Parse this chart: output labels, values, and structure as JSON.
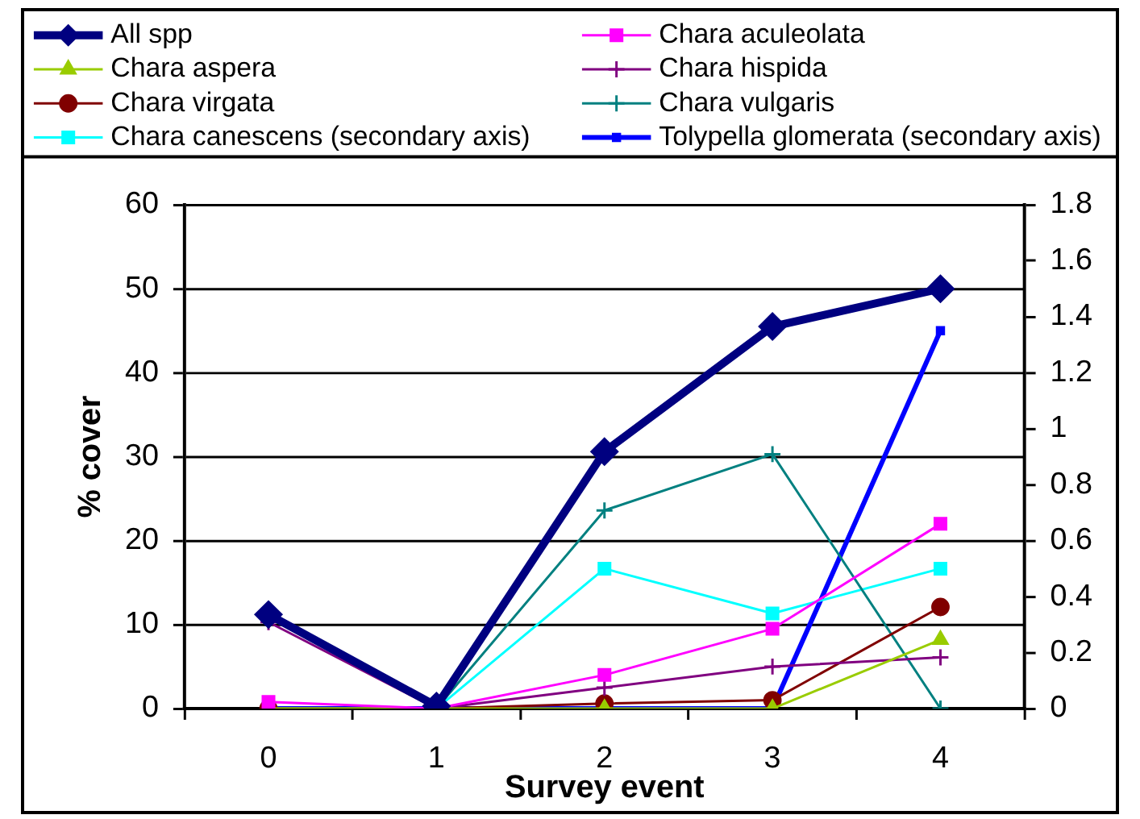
{
  "chart_data": {
    "type": "line",
    "categories": [
      "0",
      "1",
      "2",
      "3",
      "4"
    ],
    "xlabel": "Survey event",
    "ylabel": "% cover",
    "ylim": [
      0,
      60
    ],
    "yticks": [
      0,
      10,
      20,
      30,
      40,
      50,
      60
    ],
    "y2lim": [
      0,
      1.8
    ],
    "y2ticks": [
      0,
      0.2,
      0.4,
      0.6,
      0.8,
      1,
      1.2,
      1.4,
      1.6,
      1.8
    ],
    "grid": "y",
    "legend": "top",
    "series": [
      {
        "name": "All spp",
        "color": "#000080",
        "marker": "diamond",
        "values": [
          11.2,
          0.3,
          30.6,
          45.5,
          50
        ]
      },
      {
        "name": "Chara aculeolata",
        "color": "#ff00ff",
        "marker": "square",
        "values": [
          0.8,
          0,
          4,
          9.5,
          22
        ]
      },
      {
        "name": "Chara aspera",
        "color": "#99cc00",
        "marker": "triangle",
        "values": [
          0,
          0,
          0,
          0,
          8.2
        ]
      },
      {
        "name": "Chara hispida",
        "color": "#800080",
        "marker": "cross",
        "values": [
          10.3,
          0,
          2.5,
          5,
          6.1
        ]
      },
      {
        "name": "Chara virgata",
        "color": "#800000",
        "marker": "circle",
        "values": [
          0,
          0,
          0.6,
          1,
          12.1
        ]
      },
      {
        "name": "Chara vulgaris",
        "color": "#008080",
        "marker": "cross",
        "values": [
          0,
          0,
          23.6,
          30.3,
          0
        ]
      },
      {
        "name": "Chara canescens (secondary axis)",
        "color": "#00ffff",
        "marker": "square",
        "axis": "y2",
        "values": [
          0,
          0,
          0.5,
          0.34,
          0.5
        ]
      },
      {
        "name": "Tolypella glomerata (secondary axis)",
        "color": "#0000ff",
        "marker": "square",
        "axis": "y2",
        "values": [
          0,
          0,
          0,
          0,
          1.35
        ]
      }
    ]
  }
}
